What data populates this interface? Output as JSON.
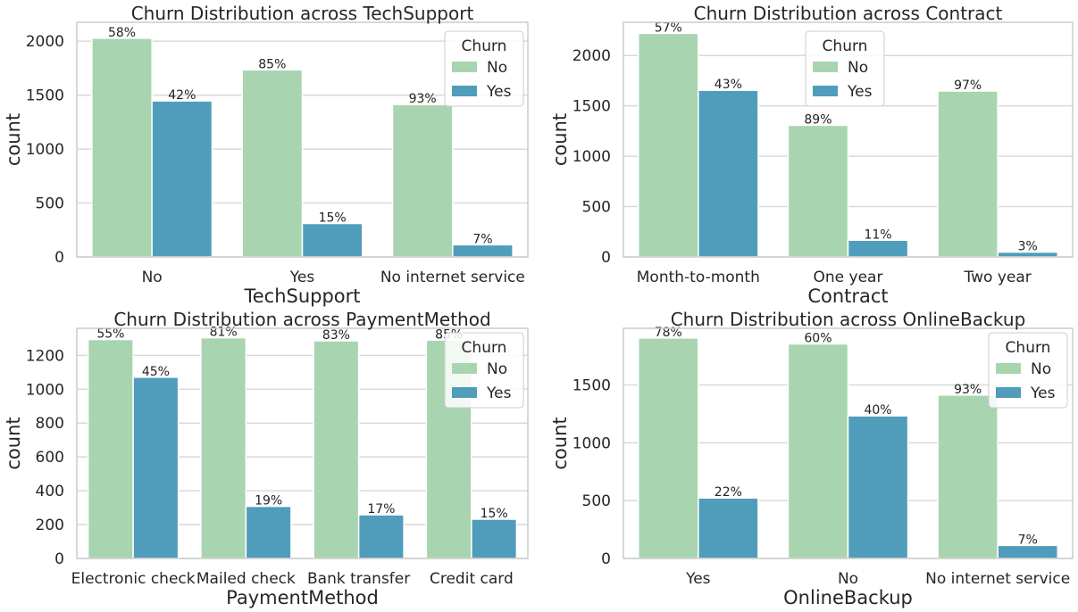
{
  "colors": {
    "no": "#a8d5b0",
    "yes": "#4f9dba",
    "grid": "#d9d9d9",
    "spine": "#cccccc",
    "text": "#262626"
  },
  "chart_data": [
    {
      "type": "bar",
      "title": "Churn Distribution across TechSupport",
      "xlabel": "TechSupport",
      "ylabel": "count",
      "categories": [
        "No",
        "Yes",
        "No internet service"
      ],
      "yticks": [
        0,
        500,
        1000,
        1500,
        2000
      ],
      "ylim": [
        0,
        2175
      ],
      "grid": true,
      "legend": {
        "title": "Churn",
        "placement": "upper-right"
      },
      "series": [
        {
          "name": "No",
          "values": [
            2027,
            1734,
            1413
          ],
          "labels": [
            "58%",
            "85%",
            "93%"
          ]
        },
        {
          "name": "Yes",
          "values": [
            1446,
            310,
            113
          ],
          "labels": [
            "42%",
            "15%",
            "7%"
          ]
        }
      ]
    },
    {
      "type": "bar",
      "title": "Churn Distribution across Contract",
      "xlabel": "Contract",
      "ylabel": "count",
      "categories": [
        "Month-to-month",
        "One year",
        "Two year"
      ],
      "yticks": [
        0,
        500,
        1000,
        1500,
        2000
      ],
      "ylim": [
        0,
        2330
      ],
      "grid": true,
      "legend": {
        "title": "Churn",
        "placement": "upper-center"
      },
      "series": [
        {
          "name": "No",
          "values": [
            2220,
            1307,
            1647
          ],
          "labels": [
            "57%",
            "89%",
            "97%"
          ]
        },
        {
          "name": "Yes",
          "values": [
            1655,
            166,
            48
          ],
          "labels": [
            "43%",
            "11%",
            "3%"
          ]
        }
      ]
    },
    {
      "type": "bar",
      "title": "Churn Distribution across PaymentMethod",
      "xlabel": "PaymentMethod",
      "ylabel": "count",
      "categories": [
        "Electronic check",
        "Mailed check",
        "Bank transfer",
        "Credit card"
      ],
      "yticks": [
        0,
        200,
        400,
        600,
        800,
        1000,
        1200
      ],
      "ylim": [
        0,
        1360
      ],
      "grid": true,
      "legend": {
        "title": "Churn",
        "placement": "upper-right"
      },
      "series": [
        {
          "name": "No",
          "values": [
            1294,
            1304,
            1286,
            1290
          ],
          "labels": [
            "55%",
            "81%",
            "83%",
            "85%"
          ]
        },
        {
          "name": "Yes",
          "values": [
            1071,
            308,
            258,
            232
          ],
          "labels": [
            "45%",
            "19%",
            "17%",
            "15%"
          ]
        }
      ]
    },
    {
      "type": "bar",
      "title": "Churn Distribution across OnlineBackup",
      "xlabel": "OnlineBackup",
      "ylabel": "count",
      "categories": [
        "Yes",
        "No",
        "No internet service"
      ],
      "yticks": [
        0,
        500,
        1000,
        1500
      ],
      "ylim": [
        0,
        1990
      ],
      "grid": true,
      "legend": {
        "title": "Churn",
        "placement": "upper-right"
      },
      "series": [
        {
          "name": "No",
          "values": [
            1906,
            1855,
            1413
          ],
          "labels": [
            "78%",
            "60%",
            "93%"
          ]
        },
        {
          "name": "Yes",
          "values": [
            523,
            1233,
            113
          ],
          "labels": [
            "22%",
            "40%",
            "7%"
          ]
        }
      ]
    }
  ]
}
